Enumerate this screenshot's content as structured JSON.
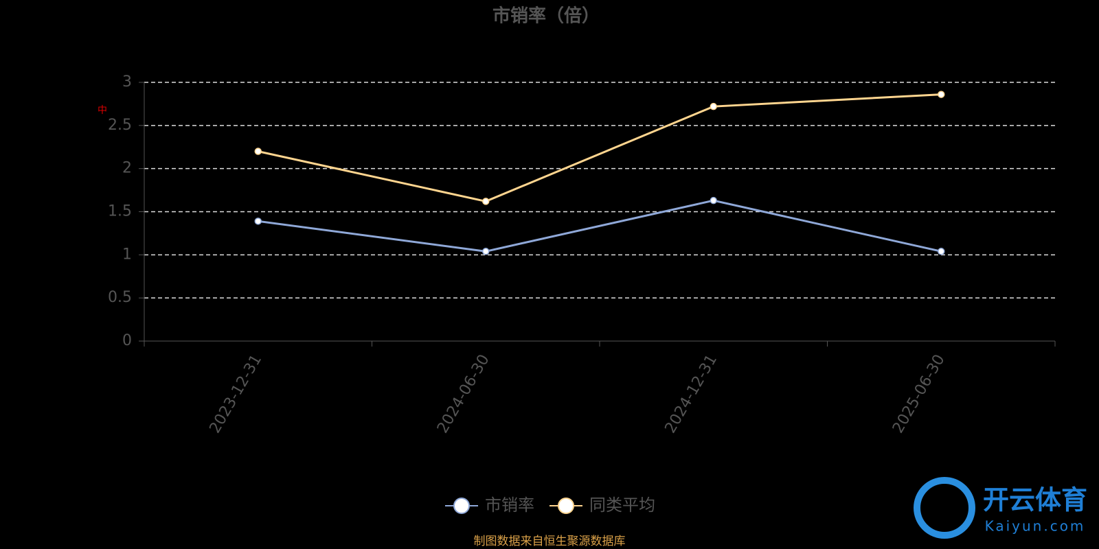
{
  "chart_data": {
    "type": "line",
    "title": "市销率（倍）",
    "categories": [
      "2023-12-31",
      "2024-06-30",
      "2024-12-31",
      "2025-06-30"
    ],
    "series": [
      {
        "name": "市销率",
        "color": "#8fa8d8",
        "values": [
          1.39,
          1.04,
          1.63,
          1.04
        ]
      },
      {
        "name": "同类平均",
        "color": "#ffd58f",
        "values": [
          2.2,
          1.62,
          2.72,
          2.86
        ]
      }
    ],
    "ylim": [
      0,
      3
    ],
    "yticks": [
      0,
      0.5,
      1,
      1.5,
      2,
      2.5,
      3
    ],
    "grid": true,
    "annotation": "中",
    "source": "制图数据来自恒生聚源数据库",
    "watermark": {
      "title": "开云体育",
      "subtitle": "Kaiyun.com"
    }
  }
}
